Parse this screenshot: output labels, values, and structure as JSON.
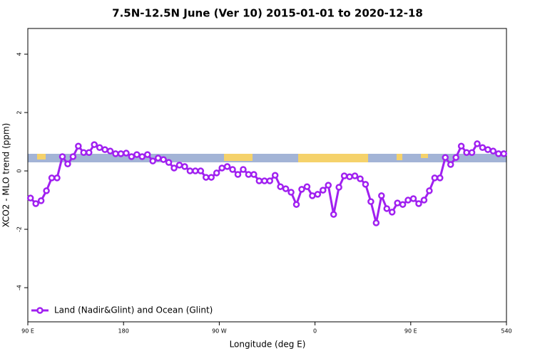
{
  "chart_data": {
    "type": "line",
    "title": "7.5N-12.5N June (Ver 10)   2015-01-01 to 2020-12-18",
    "xlabel": "Longitude (deg E)",
    "ylabel": "XCO2 - MLO trend (ppm)",
    "x": [
      92.5,
      97.5,
      102.5,
      107.5,
      112.5,
      117.5,
      122.5,
      127.5,
      132.5,
      137.5,
      142.5,
      147.5,
      152.5,
      157.5,
      162.5,
      167.5,
      172.5,
      177.5,
      182.5,
      187.5,
      192.5,
      197.5,
      202.5,
      207.5,
      212.5,
      217.5,
      222.5,
      227.5,
      232.5,
      237.5,
      242.5,
      247.5,
      252.5,
      257.5,
      262.5,
      267.5,
      272.5,
      277.5,
      282.5,
      287.5,
      292.5,
      297.5,
      302.5,
      307.5,
      312.5,
      317.5,
      322.5,
      327.5,
      332.5,
      337.5,
      342.5,
      347.5,
      352.5,
      357.5,
      362.5,
      367.5,
      372.5,
      377.5,
      382.5,
      387.5,
      392.5,
      397.5,
      402.5,
      407.5,
      412.5,
      417.5,
      422.5,
      427.5,
      432.5,
      437.5,
      442.5,
      447.5,
      452.5,
      457.5,
      462.5,
      467.5,
      472.5,
      477.5,
      482.5,
      487.5,
      492.5,
      497.5,
      502.5,
      507.5,
      512.5,
      517.5,
      522.5,
      527.5,
      532.5,
      537.5
    ],
    "series": [
      {
        "name": "Land (Nadir&Glint) and Ocean (Glint)",
        "color": "#a020f0",
        "values": [
          -0.93,
          -1.12,
          -1.02,
          -0.68,
          -0.24,
          -0.24,
          0.49,
          0.24,
          0.49,
          0.85,
          0.63,
          0.63,
          0.9,
          0.8,
          0.73,
          0.68,
          0.59,
          0.59,
          0.61,
          0.49,
          0.56,
          0.49,
          0.56,
          0.34,
          0.44,
          0.39,
          0.29,
          0.1,
          0.2,
          0.15,
          0,
          0,
          0,
          -0.22,
          -0.22,
          -0.07,
          0.1,
          0.15,
          0.05,
          -0.12,
          0.05,
          -0.12,
          -0.12,
          -0.34,
          -0.34,
          -0.34,
          -0.15,
          -0.54,
          -0.61,
          -0.73,
          -1.15,
          -0.63,
          -0.54,
          -0.85,
          -0.8,
          -0.66,
          -0.49,
          -1.49,
          -0.56,
          -0.17,
          -0.2,
          -0.17,
          -0.27,
          -0.46,
          -1.05,
          -1.78,
          -0.85,
          -1.29,
          -1.41,
          -1.1,
          -1.15,
          -1.0,
          -0.95,
          -1.12,
          -1.0,
          -0.68,
          -0.24,
          -0.24,
          0.46,
          0.22,
          0.46,
          0.85,
          0.63,
          0.63,
          0.93,
          0.8,
          0.73,
          0.68,
          0.59,
          0.59
        ]
      }
    ],
    "xlim": [
      90,
      540
    ],
    "xticks": [
      {
        "value": 90,
        "label": "90 E"
      },
      180,
      {
        "value": 270,
        "label": "90 W"
      },
      {
        "value": 360,
        "label": "0"
      },
      {
        "value": 450,
        "label": "90 E"
      },
      540
    ],
    "ylim": [
      -5.17,
      4.88
    ],
    "yticks": [
      -4,
      -2,
      0,
      2,
      4
    ],
    "legend": "bottom left"
  }
}
